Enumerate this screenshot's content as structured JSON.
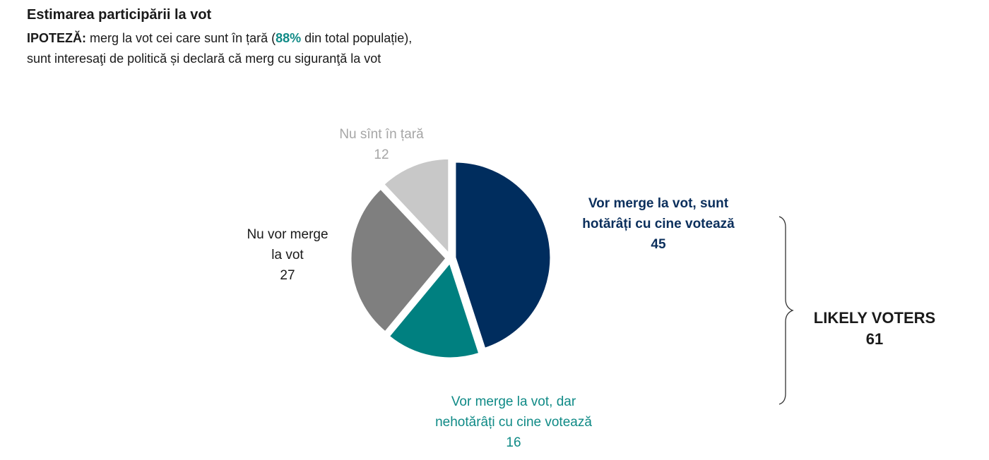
{
  "header": {
    "title": "Estimarea participării la vot",
    "hyp_prefix": "IPOTEZĂ:",
    "hyp_text_a": " merg la vot cei care sunt în țară (",
    "hyp_highlight": "88%",
    "hyp_text_b": " din total populație),",
    "hyp_line2": "sunt interesaţi de politică și declară că merg cu siguranţă la vot"
  },
  "chart_data": {
    "type": "pie",
    "start": "12 o'clock",
    "direction": "clockwise",
    "slices": [
      {
        "label_lines": [
          "Vor merge la vot, sunt",
          "hotărâți cu cine votează"
        ],
        "value": 45,
        "color": "#002d5e",
        "text_color": "#0b2f5c",
        "bold": true
      },
      {
        "label_lines": [
          "Vor merge la vot, dar",
          "nehotărâți cu cine votează"
        ],
        "value": 16,
        "color": "#008080",
        "text_color": "#0f8a86",
        "bold": false
      },
      {
        "label_lines": [
          "Nu vor merge",
          "la vot"
        ],
        "value": 27,
        "color": "#7f7f7f",
        "text_color": "#1a1a1a",
        "bold": false
      },
      {
        "label_lines": [
          "Nu sînt în țară"
        ],
        "value": 12,
        "color": "#c8c8c8",
        "text_color": "#a6a6a6",
        "bold": false
      }
    ],
    "annotation": {
      "label": "LIKELY VOTERS",
      "value": "61"
    }
  }
}
